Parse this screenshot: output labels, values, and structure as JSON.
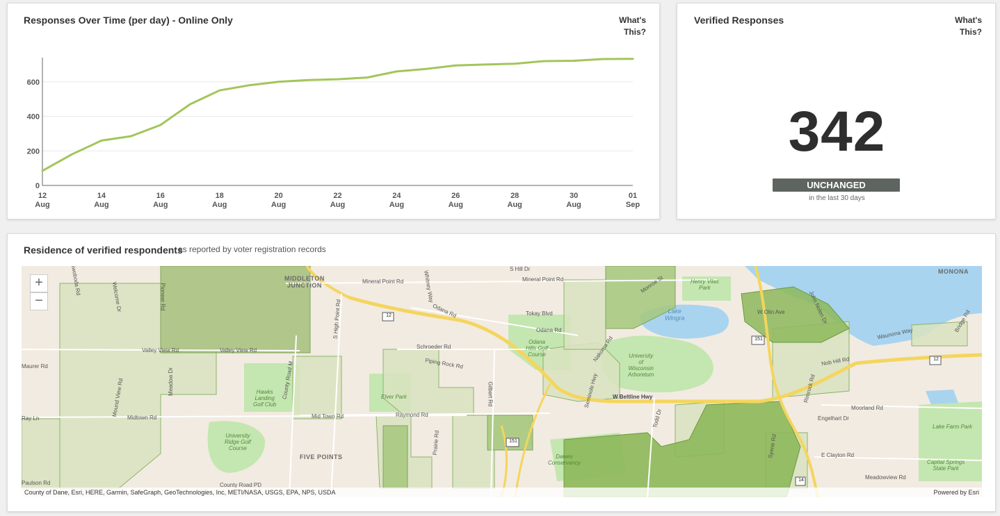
{
  "chart_panel": {
    "title": "Responses Over Time (per day) - Online Only",
    "whats_this": [
      "What's",
      "This?"
    ]
  },
  "chart_data": {
    "type": "line",
    "title": "Responses Over Time (per day) - Online Only",
    "xlabel": "",
    "ylabel": "",
    "ylim": [
      0,
      740
    ],
    "yticks": [
      0,
      200,
      400,
      600
    ],
    "xtick_labels": [
      [
        "12",
        "Aug"
      ],
      [
        "14",
        "Aug"
      ],
      [
        "16",
        "Aug"
      ],
      [
        "18",
        "Aug"
      ],
      [
        "20",
        "Aug"
      ],
      [
        "22",
        "Aug"
      ],
      [
        "24",
        "Aug"
      ],
      [
        "26",
        "Aug"
      ],
      [
        "28",
        "Aug"
      ],
      [
        "30",
        "Aug"
      ],
      [
        "01",
        "Sep"
      ]
    ],
    "x": [
      "2021-08-12",
      "2021-08-13",
      "2021-08-14",
      "2021-08-15",
      "2021-08-16",
      "2021-08-17",
      "2021-08-18",
      "2021-08-19",
      "2021-08-20",
      "2021-08-21",
      "2021-08-22",
      "2021-08-23",
      "2021-08-24",
      "2021-08-25",
      "2021-08-26",
      "2021-08-27",
      "2021-08-28",
      "2021-08-29",
      "2021-08-30",
      "2021-08-31",
      "2021-09-01"
    ],
    "values": [
      85,
      180,
      260,
      285,
      350,
      470,
      550,
      580,
      600,
      610,
      615,
      625,
      660,
      675,
      695,
      700,
      705,
      720,
      722,
      732,
      733
    ],
    "grid": true,
    "line_color": "#a3c55a"
  },
  "verified_panel": {
    "title": "Verified Responses",
    "whats_this": [
      "What's",
      "This?"
    ],
    "value": "342",
    "status": "UNCHANGED",
    "status_sub": "in the last 30 days"
  },
  "map_panel": {
    "title": "Residence of verified respondents",
    "subtitle": "as reported by voter registration records",
    "zoom_in": "+",
    "zoom_out": "−",
    "attribution": "County of Dane, Esri, HERE, Garmin, SafeGraph, GeoTechnologies, Inc, METI/NASA, USGS, EPA, NPS, USDA",
    "powered_by": "Powered by Esri",
    "labels": {
      "middleton_junction": [
        "MIDDLETON",
        "JUNCTION"
      ],
      "monona": "MONONA",
      "five_points": "FIVE POINTS",
      "lake_wingra": [
        "Lake",
        "Wingra"
      ],
      "henry_vilas": [
        "Henry Vilas",
        "Park"
      ],
      "odana_hills": [
        "Odana",
        "Hills Golf",
        "Course"
      ],
      "uw_arboretum": [
        "University",
        "of",
        "Wisconsin",
        "Arboretum"
      ],
      "hawks_landing": [
        "Hawks",
        "Landing",
        "Golf Club"
      ],
      "university_ridge": [
        "University",
        "Ridge Golf",
        "Course"
      ],
      "elver_park": "Elver Park",
      "lake_farm": "Lake Farm Park",
      "capital_springs": [
        "Capital Springs",
        "State Park"
      ],
      "dawes": [
        "Dawes",
        "Conservancy"
      ],
      "mineral_point_1": "Mineral Point Rd",
      "mineral_point_2": "Mineral Point Rd",
      "s_hill_dr": "S Hill Dr",
      "odana_rd_1": "Odana Rd",
      "odana_rd_2": "Odana Rd",
      "tokay": "Tokay Blvd",
      "schroeder": "Schroeder Rd",
      "piping_rock": "Piping Rock Rd",
      "valley_view_1": "Valley View Rd",
      "valley_view_2": "Valley View Rd",
      "maurer": "Maurer Rd",
      "midtown_1": "Midtown Rd",
      "mid_town": "Mid Town Rd",
      "raymond": "Raymond Rd",
      "w_beltline": "W Beltline Hwy",
      "moorland": "Moorland Rd",
      "engelhart": "Engelhart Dr",
      "e_clayton": "E Clayton Rd",
      "meadowview": "Meadowview Rd",
      "waunona": "Waunona Way",
      "nob_hill": "Nob Hill Rd",
      "w_olin": "W Olin Ave",
      "john_nolen": "John Nolen Dr",
      "rimrock": "Rimrock Rd",
      "seminole": "Seminole Hwy",
      "gilbert": "Gilbert Rd",
      "county_m": "County Road M",
      "s_high_point": "S High Point Rd",
      "mound_view": "Mound View Rd",
      "meadow_dr": "Meadow Dr",
      "prairie": "Prairie Rd",
      "todd": "Todd Dr",
      "syene": "Syene Rd",
      "nakoma": "Nakoma Rd",
      "monroe": "Monroe St",
      "whitney": "Whitney Way",
      "paulson": "Paulson Rd",
      "county_pd": "County Road PD",
      "pioneer": "Pioneer Rd",
      "swoboda": "Swoboda Rd",
      "welcome": "Welcome Dr",
      "ray_ln": "Ray Ln",
      "bridge": "Bridge Rd",
      "hwy_12_a": "12",
      "hwy_12_b": "12",
      "hwy_151_a": "151",
      "hwy_151_b": "151",
      "hwy_14": "14"
    }
  }
}
